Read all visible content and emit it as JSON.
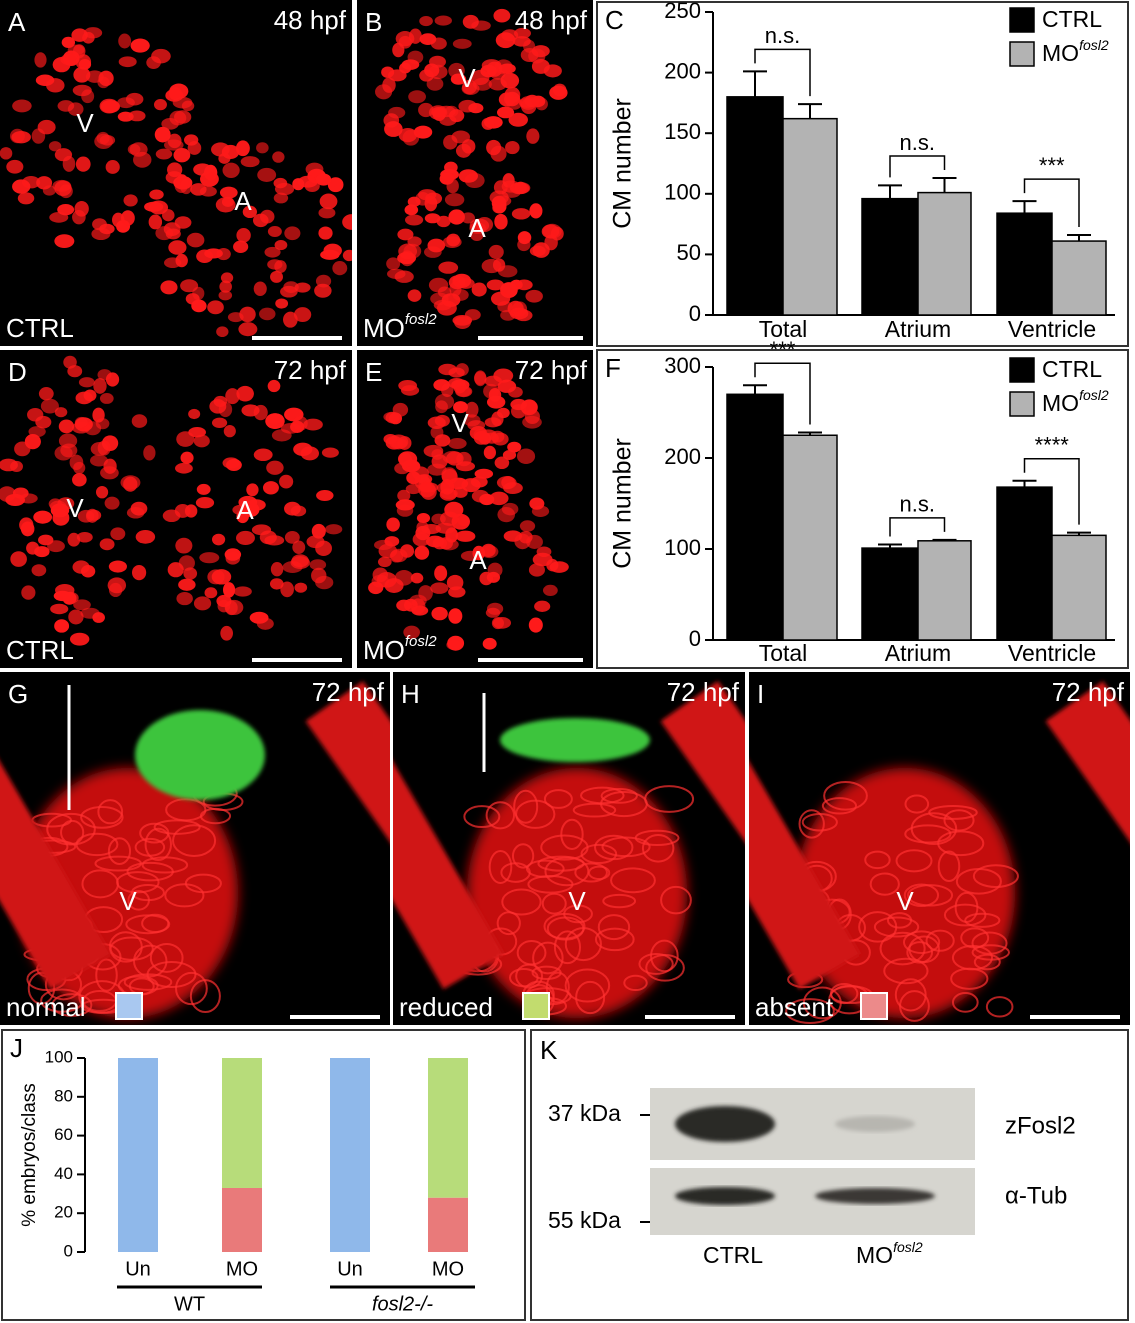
{
  "panels": [
    {
      "letter": "A",
      "stage": "48 hpf",
      "labels": [
        "V",
        "A"
      ],
      "condition": "CTRL"
    },
    {
      "letter": "B",
      "stage": "48 hpf",
      "labels": [
        "V",
        "A"
      ],
      "condition": "MO",
      "condition_superscript": "fosl2"
    },
    {
      "letter": "D",
      "stage": "72 hpf",
      "labels": [
        "V",
        "A"
      ],
      "condition": "CTRL"
    },
    {
      "letter": "E",
      "stage": "72 hpf",
      "labels": [
        "V",
        "A"
      ],
      "condition": "MO",
      "condition_superscript": "fosl2"
    },
    {
      "letter": "G",
      "stage": "72 hpf",
      "labels": [
        "V"
      ],
      "condition": "normal"
    },
    {
      "letter": "H",
      "stage": "72 hpf",
      "labels": [
        "V"
      ],
      "condition": "reduced"
    },
    {
      "letter": "I",
      "stage": "72 hpf",
      "labels": [
        "V"
      ],
      "condition": "absent"
    }
  ],
  "chart_data": [
    {
      "type": "bar",
      "letter": "C",
      "y_label": "CM number",
      "categories": [
        "Total",
        "Atrium",
        "Ventricle"
      ],
      "series": [
        {
          "name": "CTRL",
          "color": "#000000",
          "values": [
            180,
            96,
            84
          ],
          "errors": [
            21,
            11,
            10
          ]
        },
        {
          "name": "MO",
          "name_superscript": "fosl2",
          "color": "#b3b3b3",
          "values": [
            162,
            101,
            61
          ],
          "errors": [
            12,
            12,
            5
          ]
        }
      ],
      "annotations": [
        "n.s.",
        "n.s.",
        "***"
      ],
      "ylim": [
        0,
        250
      ],
      "yticks": [
        0,
        50,
        100,
        150,
        200,
        250
      ],
      "legend": "top-right"
    },
    {
      "type": "bar",
      "letter": "F",
      "y_label": "CM number",
      "categories": [
        "Total",
        "Atrium",
        "Ventricle"
      ],
      "series": [
        {
          "name": "CTRL",
          "color": "#000000",
          "values": [
            270,
            101,
            168
          ],
          "errors": [
            10,
            4,
            7
          ]
        },
        {
          "name": "MO",
          "name_superscript": "fosl2",
          "color": "#b3b3b3",
          "values": [
            225,
            109,
            115
          ],
          "errors": [
            3,
            1,
            3
          ]
        }
      ],
      "annotations": [
        "***",
        "n.s.",
        "****"
      ],
      "ylim": [
        0,
        300
      ],
      "yticks": [
        0,
        100,
        200,
        300
      ],
      "legend": "top-right"
    },
    {
      "type": "stacked-bar",
      "letter": "J",
      "y_label": "% embryos/class",
      "categories": [
        "Un",
        "MO",
        "Un",
        "MO"
      ],
      "groups": [
        "WT",
        "fosl2-/-"
      ],
      "series": [
        {
          "name": "normal",
          "color": "#8fb8ea",
          "values": [
            100,
            0,
            100,
            0
          ]
        },
        {
          "name": "absent",
          "color": "#e97a7a",
          "values": [
            0,
            33,
            0,
            28
          ]
        },
        {
          "name": "reduced",
          "color": "#b7dc7a",
          "values": [
            0,
            67,
            0,
            72
          ]
        }
      ],
      "ylim": [
        0,
        100
      ],
      "yticks": [
        0,
        20,
        40,
        60,
        80,
        100
      ]
    }
  ],
  "blot": {
    "letter": "K",
    "markers": [
      "37 kDa",
      "55 kDa"
    ],
    "bands": [
      "zFosl2",
      "α-Tub"
    ],
    "lanes": [
      "CTRL",
      "MO"
    ],
    "lane_superscript": "fosl2"
  }
}
